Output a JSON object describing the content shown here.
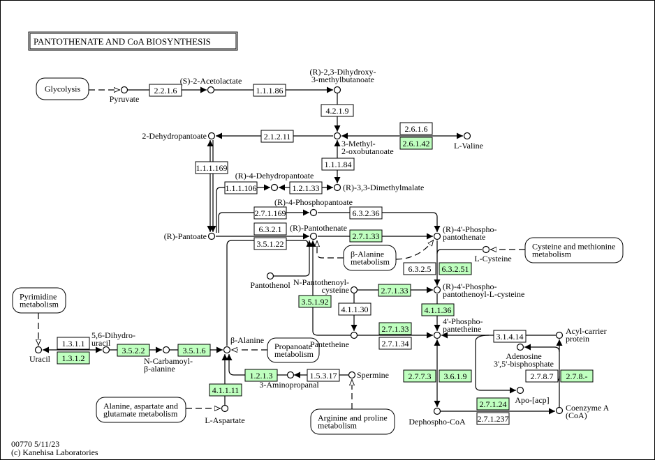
{
  "title": "PANTOTHENATE  AND  CoA  BIOSYNTHESIS",
  "footer": {
    "line1": "00770 5/11/23",
    "line2": "(c) Kanehisa Laboratories"
  },
  "colors": {
    "highlight": "#bfffbf",
    "line": "#000000"
  },
  "maps": {
    "glycolysis": [
      "Glycolysis"
    ],
    "beta_alanine": [
      "β-Alanine",
      "metabolism"
    ],
    "cys_met": [
      "Cysteine and methionine",
      "metabolism"
    ],
    "pyrimidine": [
      "Pyrimidine",
      "metabolism"
    ],
    "propanoate": [
      "Propanoate",
      "metabolism"
    ],
    "ala_asp_glu": [
      "Alanine, aspartate and",
      "glutamate metabolism"
    ],
    "arg_pro": [
      "Arginine and proline",
      "metabolism"
    ]
  },
  "compounds": {
    "pyruvate": [
      "Pyruvate"
    ],
    "acetolactate": [
      "(S)-2-Acetolactate"
    ],
    "dihydroxy": [
      "(R)-2,3-Dihydroxy-",
      "3-methylbutanoate"
    ],
    "dehydropantoate": [
      "2-Dehydropantoate"
    ],
    "methyloxo": [
      "3-Methyl-",
      "2-oxobutanoate"
    ],
    "valine": [
      "L-Valine"
    ],
    "r4dehydro": [
      "(R)-4-Dehydropantoate"
    ],
    "dimethylmalate": [
      "(R)-3,3-Dimethylmalate"
    ],
    "phosphopantoate": [
      "(R)-4-Phosphopantoate"
    ],
    "pantoate": [
      "(R)-Pantoate"
    ],
    "pantothenate": [
      "(R)-Pantothenate"
    ],
    "phosphopantothenate": [
      "(R)-4'-Phospho-",
      "pantothenate"
    ],
    "cysteine": [
      "L-Cysteine"
    ],
    "pantothenol": [
      "Pantothenol"
    ],
    "npantocys": [
      "N-Pantothenoyl-",
      "cysteine"
    ],
    "ppcys": [
      "(R)-4'-Phospho-",
      "pantothenoyl-L-cysteine"
    ],
    "pantetheine": [
      "Pantetheine"
    ],
    "phosphopantetheine": [
      "4'-Phospho-",
      "pantetheine"
    ],
    "acp": [
      "Acyl-carrier",
      "protein"
    ],
    "adenosine": [
      "Adenosine",
      "3',5'-bisphosphate"
    ],
    "uracil": [
      "Uracil"
    ],
    "dihydrouracil": [
      "5,6-Dihydro-",
      "uracil"
    ],
    "carbamoyl": [
      "N-Carbamoyl-",
      "β-alanine"
    ],
    "betaalanine": [
      "β-Alanine"
    ],
    "aminopropanal": [
      "3-Aminopropanal"
    ],
    "spermine": [
      "Spermine"
    ],
    "apoacp": [
      "Apo-[acp]"
    ],
    "aspartate": [
      "L-Aspartate"
    ],
    "dephosphocoa": [
      "Dephospho-CoA"
    ],
    "coa": [
      "Coenzyme A",
      "(CoA)"
    ]
  },
  "enzymes": [
    {
      "label": "2.2.1.6",
      "highlighted": false
    },
    {
      "label": "1.1.1.86",
      "highlighted": false
    },
    {
      "label": "4.2.1.9",
      "highlighted": false
    },
    {
      "label": "2.1.2.11",
      "highlighted": false
    },
    {
      "label": "2.6.1.6",
      "highlighted": false
    },
    {
      "label": "2.6.1.42",
      "highlighted": true
    },
    {
      "label": "1.1.1.169",
      "highlighted": false
    },
    {
      "label": "1.1.1.84",
      "highlighted": false
    },
    {
      "label": "1.1.1.106",
      "highlighted": false
    },
    {
      "label": "1.2.1.33",
      "highlighted": false
    },
    {
      "label": "2.7.1.169",
      "highlighted": false
    },
    {
      "label": "6.3.2.36",
      "highlighted": false
    },
    {
      "label": "6.3.2.1",
      "highlighted": false
    },
    {
      "label": "2.7.1.33",
      "highlighted": true
    },
    {
      "label": "3.5.1.22",
      "highlighted": false
    },
    {
      "label": "6.3.2.5",
      "highlighted": false
    },
    {
      "label": "6.3.2.51",
      "highlighted": true
    },
    {
      "label": "2.7.1.33",
      "highlighted": true
    },
    {
      "label": "3.5.1.92",
      "highlighted": true
    },
    {
      "label": "4.1.1.30",
      "highlighted": false
    },
    {
      "label": "4.1.1.36",
      "highlighted": true
    },
    {
      "label": "2.7.1.33",
      "highlighted": true
    },
    {
      "label": "2.7.1.34",
      "highlighted": false
    },
    {
      "label": "3.1.4.14",
      "highlighted": false
    },
    {
      "label": "1.3.1.1",
      "highlighted": false
    },
    {
      "label": "1.3.1.2",
      "highlighted": true
    },
    {
      "label": "3.5.2.2",
      "highlighted": true
    },
    {
      "label": "3.5.1.6",
      "highlighted": true
    },
    {
      "label": "1.2.1.3",
      "highlighted": true
    },
    {
      "label": "1.5.3.17",
      "highlighted": false
    },
    {
      "label": "2.7.7.3",
      "highlighted": true
    },
    {
      "label": "3.6.1.9",
      "highlighted": true
    },
    {
      "label": "2.7.8.7",
      "highlighted": false
    },
    {
      "label": "2.7.8.-",
      "highlighted": true
    },
    {
      "label": "4.1.1.11",
      "highlighted": true
    },
    {
      "label": "2.7.1.24",
      "highlighted": true
    },
    {
      "label": "2.7.1.237",
      "highlighted": false
    }
  ]
}
